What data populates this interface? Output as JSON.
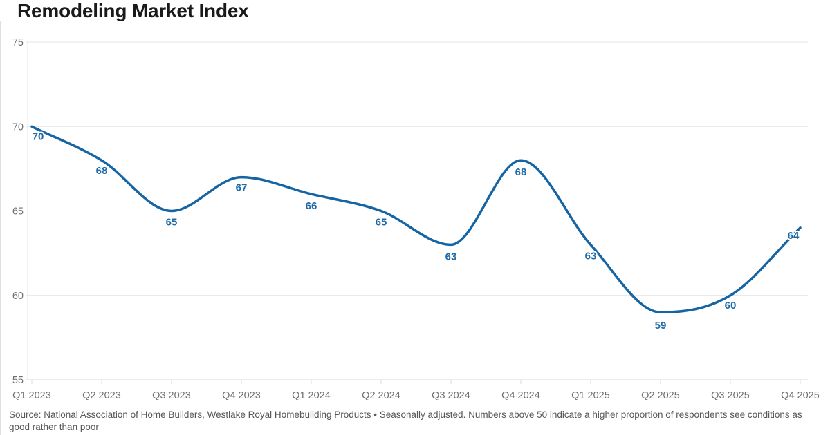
{
  "header": {
    "title": "Remodeling Market Index"
  },
  "chart_data": {
    "type": "line",
    "title": "Remodeling Market Index",
    "categories": [
      "Q1 2023",
      "Q2 2023",
      "Q3 2023",
      "Q4 2023",
      "Q1 2024",
      "Q2 2024",
      "Q3 2024",
      "Q4 2024",
      "Q1 2025",
      "Q2 2025",
      "Q3 2025",
      "Q4 2025"
    ],
    "values": [
      70,
      68,
      65,
      67,
      66,
      65,
      63,
      68,
      63,
      59,
      60,
      64
    ],
    "value_labels": [
      "70",
      "68",
      "65",
      "67",
      "66",
      "65",
      "63",
      "68",
      "63",
      "59",
      "60",
      "64"
    ],
    "xlabel": "",
    "ylabel": "",
    "ylim": [
      55,
      75
    ],
    "y_ticks": [
      55,
      60,
      65,
      70,
      75
    ],
    "grid": "horizontal",
    "legend": "none",
    "line_color": "#1565a4",
    "value_label_color": "#1e6aa8",
    "axis_label_color": "#6f6f6f",
    "gridline_color": "#e4e4e4",
    "baseline_color": "#d8d8d8"
  },
  "footer": {
    "source": "Source: National Association of Home Builders, Westlake Royal Homebuilding Products • Seasonally adjusted. Numbers above 50 indicate a higher proportion of respondents see conditions as good rather than poor"
  }
}
